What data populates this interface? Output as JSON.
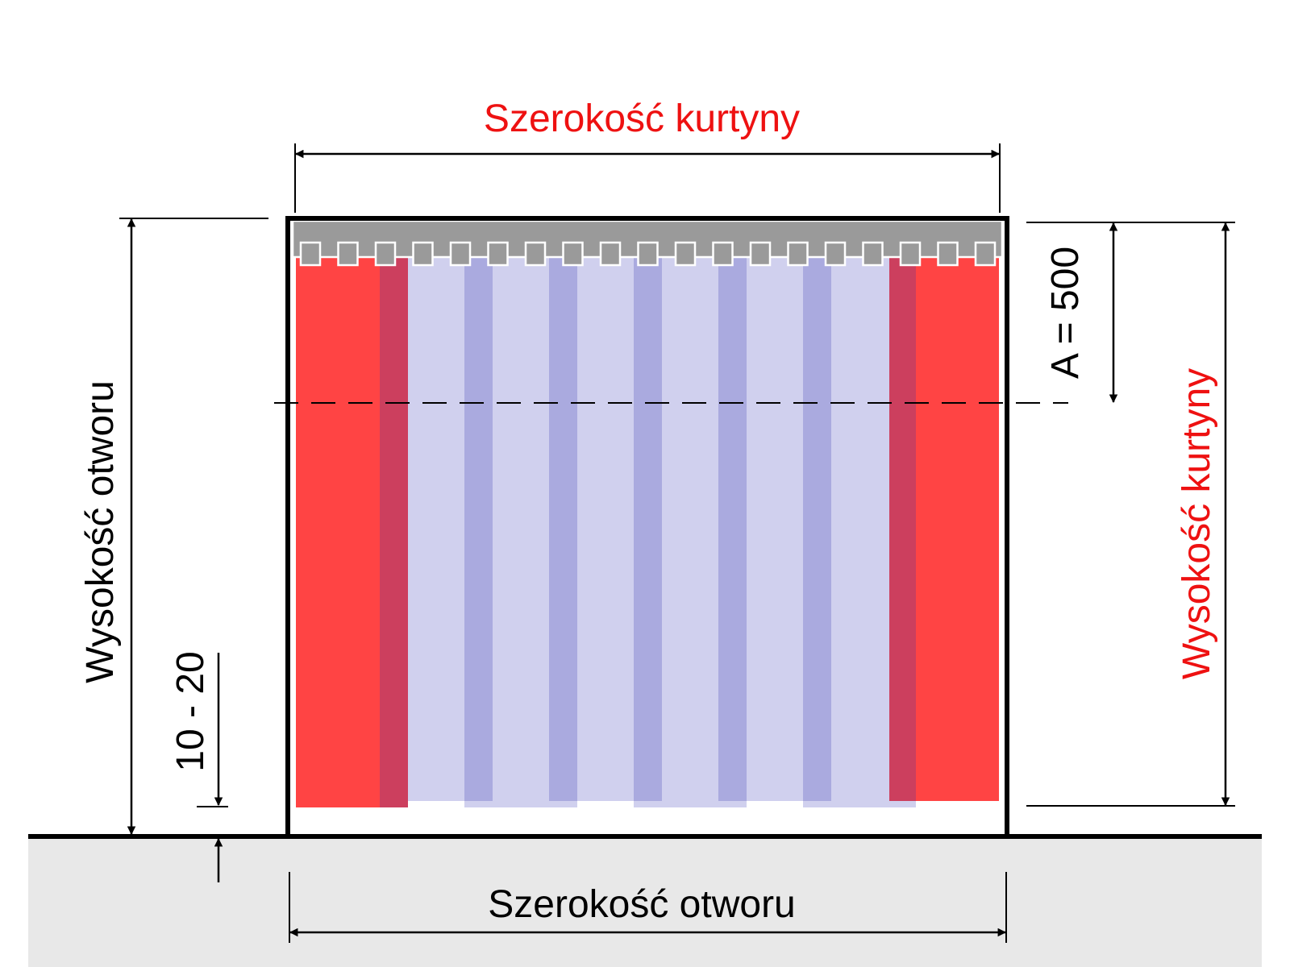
{
  "labels": {
    "curtain_width": "Szerokość kurtyny",
    "opening_width": "Szerokość otworu",
    "opening_height": "Wysokość otworu",
    "curtain_height": "Wysokość kurtyny",
    "overlap_a": "A = 500",
    "floor_gap": "10 - 20"
  },
  "colors": {
    "outer_strip": "#ff4444",
    "outer_strip_overlap": "#cc3f5e",
    "clear_strip": "#d0d0ee",
    "clear_strip_overlap": "#aaaadf",
    "rail": "#9a9a9a",
    "floor": "#e8e8e8",
    "highlight_text": "#ee1111",
    "ink": "#000000"
  },
  "curtain": {
    "hanger_count": 19
  }
}
